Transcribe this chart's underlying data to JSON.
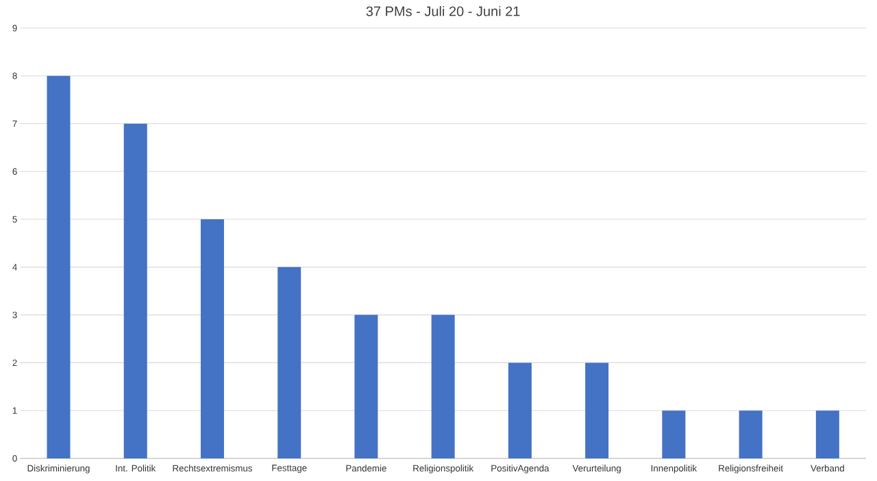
{
  "chart_data": {
    "type": "bar",
    "title": "37 PMs - Juli 20 - Juni 21",
    "categories": [
      "Diskriminierung",
      "Int. Politik",
      "Rechtsextremismus",
      "Festtage",
      "Pandemie",
      "Religionspolitik",
      "PositivAgenda",
      "Verurteilung",
      "Innenpolitik",
      "Religionsfreiheit",
      "Verband"
    ],
    "values": [
      8,
      7,
      5,
      4,
      3,
      3,
      2,
      2,
      1,
      1,
      1
    ],
    "color": "#4472c4",
    "ylim": [
      0,
      9
    ],
    "yticks": [
      0,
      1,
      2,
      3,
      4,
      5,
      6,
      7,
      8,
      9
    ],
    "grid": true
  }
}
